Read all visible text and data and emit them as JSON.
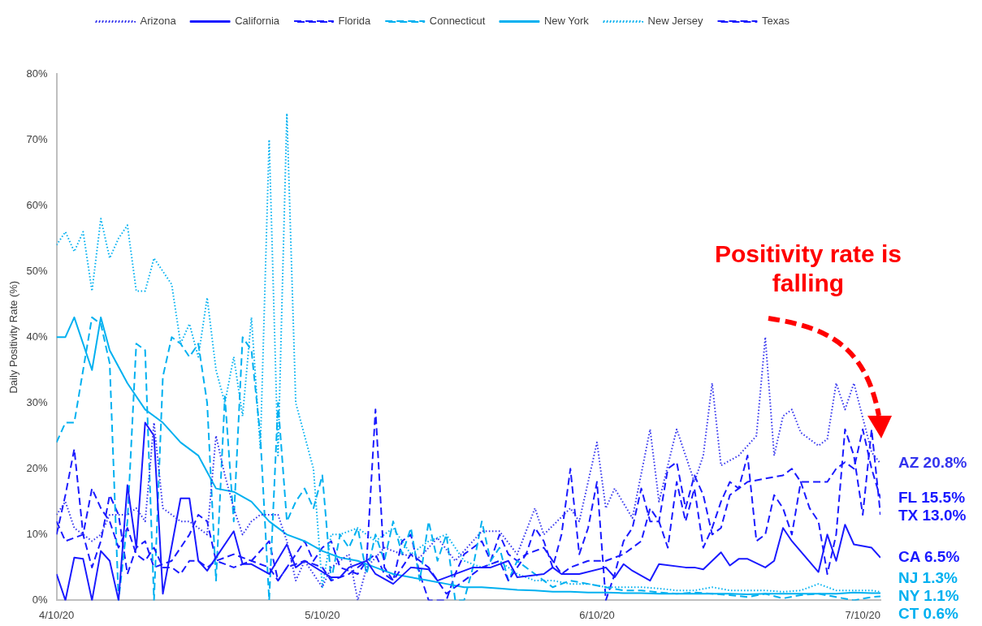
{
  "chart_data": {
    "type": "line",
    "ylabel": "Daily Positivity Rate (%)",
    "xlim": [
      "2020-04-10",
      "2020-07-12"
    ],
    "xticks": [
      {
        "value": "2020-04-10",
        "label": "4/10/20"
      },
      {
        "value": "2020-05-10",
        "label": "5/10/20"
      },
      {
        "value": "2020-06-10",
        "label": "6/10/20"
      },
      {
        "value": "2020-07-10",
        "label": "7/10/20"
      }
    ],
    "ylim": [
      0,
      80
    ],
    "yticks": [
      {
        "value": 0,
        "label": "0%"
      },
      {
        "value": 10,
        "label": "10%"
      },
      {
        "value": 20,
        "label": "20%"
      },
      {
        "value": 30,
        "label": "30%"
      },
      {
        "value": 40,
        "label": "40%"
      },
      {
        "value": 50,
        "label": "50%"
      },
      {
        "value": 60,
        "label": "60%"
      },
      {
        "value": 70,
        "label": "70%"
      },
      {
        "value": 80,
        "label": "80%"
      }
    ],
    "legend": "top",
    "marker": "none",
    "series": [
      {
        "name": "Arizona",
        "color": "#3333ee",
        "line_style": "dotted",
        "x": [
          "2020-04-10",
          "2020-04-11",
          "2020-04-12",
          "2020-04-14",
          "2020-04-15",
          "2020-04-16",
          "2020-04-18",
          "2020-04-19",
          "2020-04-20",
          "2020-04-21",
          "2020-04-22",
          "2020-04-24",
          "2020-04-25",
          "2020-04-27",
          "2020-04-28",
          "2020-04-29",
          "2020-04-30",
          "2020-05-01",
          "2020-05-02",
          "2020-05-03",
          "2020-05-05",
          "2020-05-06",
          "2020-05-07",
          "2020-05-08",
          "2020-05-10",
          "2020-05-11",
          "2020-05-13",
          "2020-05-14",
          "2020-05-15",
          "2020-05-17",
          "2020-05-19",
          "2020-05-21",
          "2020-05-23",
          "2020-05-25",
          "2020-05-28",
          "2020-05-30",
          "2020-06-01",
          "2020-06-03",
          "2020-06-04",
          "2020-06-07",
          "2020-06-08",
          "2020-06-10",
          "2020-06-11",
          "2020-06-12",
          "2020-06-14",
          "2020-06-16",
          "2020-06-17",
          "2020-06-19",
          "2020-06-21",
          "2020-06-22",
          "2020-06-23",
          "2020-06-24",
          "2020-06-26",
          "2020-06-28",
          "2020-06-29",
          "2020-06-30",
          "2020-07-01",
          "2020-07-02",
          "2020-07-03",
          "2020-07-05",
          "2020-07-06",
          "2020-07-07",
          "2020-07-08",
          "2020-07-09",
          "2020-07-11",
          "2020-07-12"
        ],
        "values": [
          13,
          15,
          11,
          9,
          10,
          13,
          13,
          14,
          12,
          27,
          14,
          12,
          12,
          10,
          25,
          19,
          14,
          10,
          12,
          13,
          13,
          9,
          3,
          6,
          2,
          5,
          7,
          0,
          5,
          8,
          7,
          6.5,
          9.5,
          6,
          10.5,
          10.5,
          7,
          14,
          10,
          14,
          12,
          24,
          14,
          17,
          12.5,
          26,
          15,
          26,
          18,
          22,
          33,
          20.5,
          22,
          25,
          40,
          22,
          28,
          29,
          25.5,
          23.5,
          24.5,
          33,
          29,
          33,
          22.5,
          20.8
        ]
      },
      {
        "name": "California",
        "color": "#1a1aff",
        "line_style": "solid",
        "x": [
          "2020-04-10",
          "2020-04-11",
          "2020-04-12",
          "2020-04-13",
          "2020-04-14",
          "2020-04-15",
          "2020-04-16",
          "2020-04-17",
          "2020-04-18",
          "2020-04-19",
          "2020-04-20",
          "2020-04-21",
          "2020-04-22",
          "2020-04-24",
          "2020-04-25",
          "2020-04-26",
          "2020-04-27",
          "2020-04-30",
          "2020-05-01",
          "2020-05-02",
          "2020-05-04",
          "2020-05-06",
          "2020-05-07",
          "2020-05-08",
          "2020-05-11",
          "2020-05-12",
          "2020-05-13",
          "2020-05-15",
          "2020-05-16",
          "2020-05-18",
          "2020-05-20",
          "2020-05-22",
          "2020-05-23",
          "2020-05-27",
          "2020-05-29",
          "2020-05-31",
          "2020-06-01",
          "2020-06-04",
          "2020-06-05",
          "2020-06-06",
          "2020-06-08",
          "2020-06-11",
          "2020-06-12",
          "2020-06-13",
          "2020-06-14",
          "2020-06-16",
          "2020-06-17",
          "2020-06-20",
          "2020-06-21",
          "2020-06-22",
          "2020-06-24",
          "2020-06-25",
          "2020-06-26",
          "2020-06-27",
          "2020-06-29",
          "2020-06-30",
          "2020-07-01",
          "2020-07-02",
          "2020-07-05",
          "2020-07-06",
          "2020-07-07",
          "2020-07-08",
          "2020-07-09",
          "2020-07-11",
          "2020-07-12"
        ],
        "values": [
          4,
          0,
          6.5,
          6.3,
          0,
          7.5,
          6,
          0,
          17.5,
          8,
          27,
          25,
          1,
          15.5,
          15.5,
          6,
          4.5,
          10.5,
          5.5,
          5.5,
          4,
          8.5,
          5,
          6,
          3.5,
          3.5,
          5,
          6,
          4,
          2.5,
          5,
          4.7,
          3,
          5,
          5,
          6,
          3.5,
          4,
          5,
          4,
          4,
          5,
          3.5,
          5.5,
          4.5,
          3,
          5.5,
          5,
          5,
          4.7,
          7.3,
          5.3,
          6.3,
          6.3,
          5,
          6,
          11,
          9,
          4.3,
          10,
          6,
          11.5,
          8.5,
          8,
          6.5
        ]
      },
      {
        "name": "Florida",
        "color": "#1a1aff",
        "line_style": "dashed",
        "x": [
          "2020-04-10",
          "2020-04-11",
          "2020-04-13",
          "2020-04-14",
          "2020-04-15",
          "2020-04-16",
          "2020-04-17",
          "2020-04-18",
          "2020-04-19",
          "2020-04-20",
          "2020-04-21",
          "2020-04-22",
          "2020-04-23",
          "2020-04-24",
          "2020-04-25",
          "2020-04-26",
          "2020-04-27",
          "2020-04-28",
          "2020-04-30",
          "2020-05-02",
          "2020-05-04",
          "2020-05-05",
          "2020-05-06",
          "2020-05-08",
          "2020-05-10",
          "2020-05-11",
          "2020-05-13",
          "2020-05-15",
          "2020-05-16",
          "2020-05-17",
          "2020-05-18",
          "2020-05-19",
          "2020-05-20",
          "2020-05-22",
          "2020-05-24",
          "2020-05-26",
          "2020-05-28",
          "2020-05-30",
          "2020-05-31",
          "2020-06-02",
          "2020-06-04",
          "2020-06-06",
          "2020-06-07",
          "2020-06-09",
          "2020-06-11",
          "2020-06-13",
          "2020-06-15",
          "2020-06-16",
          "2020-06-17",
          "2020-06-18",
          "2020-06-19",
          "2020-06-20",
          "2020-06-21",
          "2020-06-22",
          "2020-06-23",
          "2020-06-24",
          "2020-06-25",
          "2020-06-26",
          "2020-06-27",
          "2020-06-29",
          "2020-07-01",
          "2020-07-02",
          "2020-07-03",
          "2020-07-05",
          "2020-07-06",
          "2020-07-07",
          "2020-07-08",
          "2020-07-09",
          "2020-07-10",
          "2020-07-11",
          "2020-07-12"
        ],
        "values": [
          12,
          9,
          10,
          17,
          14,
          12,
          8,
          11,
          7,
          6,
          8,
          5,
          5,
          4,
          6,
          6,
          5,
          6,
          7,
          6,
          5,
          3,
          5,
          6,
          5,
          3,
          4,
          6,
          29,
          5,
          3,
          5,
          7,
          5,
          1,
          3,
          5,
          6,
          3,
          7,
          8,
          4,
          5,
          6,
          6,
          7,
          9,
          14,
          12,
          8,
          18,
          12,
          17,
          8,
          11,
          15,
          18,
          17,
          18,
          18.5,
          19,
          20,
          18,
          18,
          18,
          20,
          21,
          20,
          26,
          20,
          15.5
        ]
      },
      {
        "name": "Connecticut",
        "color": "#00b0f0",
        "line_style": "dashed",
        "x": [
          "2020-04-10",
          "2020-04-11",
          "2020-04-12",
          "2020-04-14",
          "2020-04-15",
          "2020-04-16",
          "2020-04-17",
          "2020-04-18",
          "2020-04-19",
          "2020-04-20",
          "2020-04-21",
          "2020-04-22",
          "2020-04-23",
          "2020-04-24",
          "2020-04-25",
          "2020-04-26",
          "2020-04-27",
          "2020-04-28",
          "2020-04-29",
          "2020-04-30",
          "2020-05-01",
          "2020-05-02",
          "2020-05-03",
          "2020-05-04",
          "2020-05-05",
          "2020-05-06",
          "2020-05-07",
          "2020-05-08",
          "2020-05-09",
          "2020-05-10",
          "2020-05-11",
          "2020-05-12",
          "2020-05-13",
          "2020-05-14",
          "2020-05-15",
          "2020-05-16",
          "2020-05-17",
          "2020-05-18",
          "2020-05-19",
          "2020-05-20",
          "2020-05-21",
          "2020-05-22",
          "2020-05-23",
          "2020-05-24",
          "2020-05-25",
          "2020-05-26",
          "2020-05-27",
          "2020-05-28",
          "2020-05-29",
          "2020-05-30",
          "2020-05-31",
          "2020-06-01",
          "2020-06-03",
          "2020-06-05",
          "2020-06-07",
          "2020-06-09",
          "2020-06-11",
          "2020-06-13",
          "2020-06-15",
          "2020-06-17",
          "2020-06-19",
          "2020-06-21",
          "2020-06-23",
          "2020-06-25",
          "2020-06-27",
          "2020-06-29",
          "2020-07-01",
          "2020-07-03",
          "2020-07-05",
          "2020-07-07",
          "2020-07-09",
          "2020-07-11",
          "2020-07-12"
        ],
        "values": [
          24,
          27,
          27,
          43,
          42,
          36,
          0,
          12,
          39,
          38,
          0,
          34,
          40,
          39,
          37,
          39,
          30,
          3,
          31,
          12,
          40,
          38,
          25,
          0,
          30,
          12,
          15,
          17,
          14,
          19,
          3,
          10,
          8,
          11,
          4,
          10,
          6,
          12,
          7,
          11,
          3,
          12,
          6,
          10,
          0,
          0,
          5,
          12,
          6,
          8,
          3,
          6,
          4,
          2,
          3,
          2.5,
          2,
          1.5,
          1.5,
          1.2,
          1,
          1.2,
          1,
          0.8,
          0.5,
          1,
          0.3,
          0.8,
          1,
          0.5,
          0,
          0.5,
          0.6
        ]
      },
      {
        "name": "New York",
        "color": "#00b0f0",
        "line_style": "solid",
        "x": [
          "2020-04-10",
          "2020-04-11",
          "2020-04-12",
          "2020-04-14",
          "2020-04-15",
          "2020-04-16",
          "2020-04-18",
          "2020-04-20",
          "2020-04-22",
          "2020-04-24",
          "2020-04-26",
          "2020-04-28",
          "2020-04-30",
          "2020-05-02",
          "2020-05-04",
          "2020-05-06",
          "2020-05-08",
          "2020-05-10",
          "2020-05-12",
          "2020-05-14",
          "2020-05-16",
          "2020-05-18",
          "2020-05-20",
          "2020-05-22",
          "2020-05-24",
          "2020-05-26",
          "2020-05-28",
          "2020-05-30",
          "2020-06-01",
          "2020-06-03",
          "2020-06-05",
          "2020-06-07",
          "2020-06-09",
          "2020-06-11",
          "2020-06-13",
          "2020-06-15",
          "2020-06-17",
          "2020-06-19",
          "2020-06-21",
          "2020-06-23",
          "2020-06-25",
          "2020-06-27",
          "2020-06-29",
          "2020-07-01",
          "2020-07-03",
          "2020-07-05",
          "2020-07-07",
          "2020-07-09",
          "2020-07-11",
          "2020-07-12"
        ],
        "values": [
          40,
          40,
          43,
          35,
          43,
          38,
          33,
          29,
          27,
          24,
          22,
          17,
          16.5,
          15,
          12,
          10,
          9,
          7.5,
          6.5,
          6,
          5,
          4,
          3.5,
          3,
          2.5,
          2,
          2,
          1.8,
          1.6,
          1.5,
          1.3,
          1.3,
          1.2,
          1.2,
          1.1,
          1.1,
          1,
          1,
          1,
          1,
          1,
          0.9,
          1,
          1,
          1,
          1,
          1,
          1.2,
          1.1,
          1.1
        ]
      },
      {
        "name": "New Jersey",
        "color": "#00b0f0",
        "line_style": "dotted",
        "x": [
          "2020-04-10",
          "2020-04-11",
          "2020-04-12",
          "2020-04-13",
          "2020-04-14",
          "2020-04-15",
          "2020-04-16",
          "2020-04-17",
          "2020-04-18",
          "2020-04-19",
          "2020-04-20",
          "2020-04-21",
          "2020-04-22",
          "2020-04-23",
          "2020-04-24",
          "2020-04-25",
          "2020-04-26",
          "2020-04-27",
          "2020-04-28",
          "2020-04-29",
          "2020-04-30",
          "2020-05-01",
          "2020-05-02",
          "2020-05-03",
          "2020-05-04",
          "2020-05-05",
          "2020-05-06",
          "2020-05-07",
          "2020-05-08",
          "2020-05-09",
          "2020-05-10",
          "2020-05-11",
          "2020-05-12",
          "2020-05-14",
          "2020-05-16",
          "2020-05-18",
          "2020-05-20",
          "2020-05-22",
          "2020-05-24",
          "2020-05-26",
          "2020-05-28",
          "2020-05-30",
          "2020-06-01",
          "2020-06-03",
          "2020-06-05",
          "2020-06-07",
          "2020-06-09",
          "2020-06-11",
          "2020-06-13",
          "2020-06-15",
          "2020-06-17",
          "2020-06-19",
          "2020-06-21",
          "2020-06-23",
          "2020-06-25",
          "2020-06-27",
          "2020-06-29",
          "2020-07-01",
          "2020-07-03",
          "2020-07-05",
          "2020-07-07",
          "2020-07-09",
          "2020-07-11",
          "2020-07-12"
        ],
        "values": [
          54,
          56,
          53,
          56,
          47,
          58,
          52,
          55,
          57,
          47,
          47,
          52,
          50,
          48,
          39,
          42,
          37,
          46,
          35,
          30,
          37,
          28,
          43,
          23,
          70,
          22,
          74,
          30,
          25,
          20,
          2,
          10,
          10,
          11,
          9,
          11,
          7,
          9,
          10,
          6,
          5,
          6,
          4,
          3,
          3,
          2.5,
          2.5,
          2,
          2,
          2,
          1.8,
          1.5,
          1.5,
          2,
          1.5,
          1.5,
          1.5,
          1.3,
          1.5,
          2.5,
          1.5,
          1.5,
          1.5,
          1.3
        ]
      },
      {
        "name": "Texas",
        "color": "#1a1aff",
        "line_style": "dashed",
        "x": [
          "2020-04-10",
          "2020-04-11",
          "2020-04-12",
          "2020-04-13",
          "2020-04-14",
          "2020-04-15",
          "2020-04-16",
          "2020-04-17",
          "2020-04-18",
          "2020-04-19",
          "2020-04-20",
          "2020-04-21",
          "2020-04-23",
          "2020-04-25",
          "2020-04-26",
          "2020-04-27",
          "2020-04-28",
          "2020-04-30",
          "2020-05-02",
          "2020-05-04",
          "2020-05-05",
          "2020-05-06",
          "2020-05-08",
          "2020-05-09",
          "2020-05-10",
          "2020-05-11",
          "2020-05-12",
          "2020-05-14",
          "2020-05-15",
          "2020-05-16",
          "2020-05-17",
          "2020-05-18",
          "2020-05-19",
          "2020-05-20",
          "2020-05-21",
          "2020-05-22",
          "2020-05-24",
          "2020-05-25",
          "2020-05-26",
          "2020-05-28",
          "2020-05-29",
          "2020-05-30",
          "2020-05-31",
          "2020-06-01",
          "2020-06-02",
          "2020-06-03",
          "2020-06-04",
          "2020-06-05",
          "2020-06-06",
          "2020-06-07",
          "2020-06-08",
          "2020-06-09",
          "2020-06-10",
          "2020-06-11",
          "2020-06-12",
          "2020-06-13",
          "2020-06-14",
          "2020-06-15",
          "2020-06-16",
          "2020-06-17",
          "2020-06-18",
          "2020-06-19",
          "2020-06-20",
          "2020-06-21",
          "2020-06-22",
          "2020-06-23",
          "2020-06-24",
          "2020-06-25",
          "2020-06-26",
          "2020-06-27",
          "2020-06-28",
          "2020-06-29",
          "2020-06-30",
          "2020-07-01",
          "2020-07-02",
          "2020-07-03",
          "2020-07-04",
          "2020-07-05",
          "2020-07-06",
          "2020-07-07",
          "2020-07-08",
          "2020-07-09",
          "2020-07-10",
          "2020-07-11",
          "2020-07-12"
        ],
        "values": [
          10,
          16,
          23,
          10,
          5,
          9,
          16,
          13,
          4,
          8,
          9,
          5,
          6,
          10,
          13,
          12,
          6,
          5,
          6,
          9,
          3,
          5,
          9,
          6,
          8,
          9,
          5,
          4,
          6,
          7,
          4,
          3,
          9,
          10,
          4,
          0,
          0,
          4,
          7,
          9,
          6,
          10,
          7,
          6,
          7,
          11,
          9,
          5,
          10,
          20,
          7,
          11,
          18,
          0,
          4,
          9,
          11,
          17,
          12,
          12,
          20,
          21,
          14,
          19,
          16,
          10,
          11,
          16,
          17,
          22,
          9,
          10,
          16,
          14,
          10,
          18,
          14,
          12,
          4,
          10,
          26,
          22,
          13,
          26,
          13
        ]
      }
    ],
    "annotations": [
      "Positivity rate is falling",
      {
        "text": "AZ 20.8%",
        "x": "2020-07-12",
        "y": 20.8
      },
      {
        "text": "FL 15.5%",
        "x": "2020-07-12",
        "y": 15.5
      },
      {
        "text": "TX 13.0%",
        "x": "2020-07-12",
        "y": 13
      },
      {
        "text": "CA 6.5%",
        "x": "2020-07-12",
        "y": 6.5
      },
      {
        "text": "NJ 1.3%",
        "x": "2020-07-12",
        "y": 1.3
      },
      {
        "text": "NY 1.1%",
        "x": "2020-07-12",
        "y": 1.1
      },
      {
        "text": "CT 0.6%",
        "x": "2020-07-12",
        "y": 0.6
      }
    ]
  }
}
